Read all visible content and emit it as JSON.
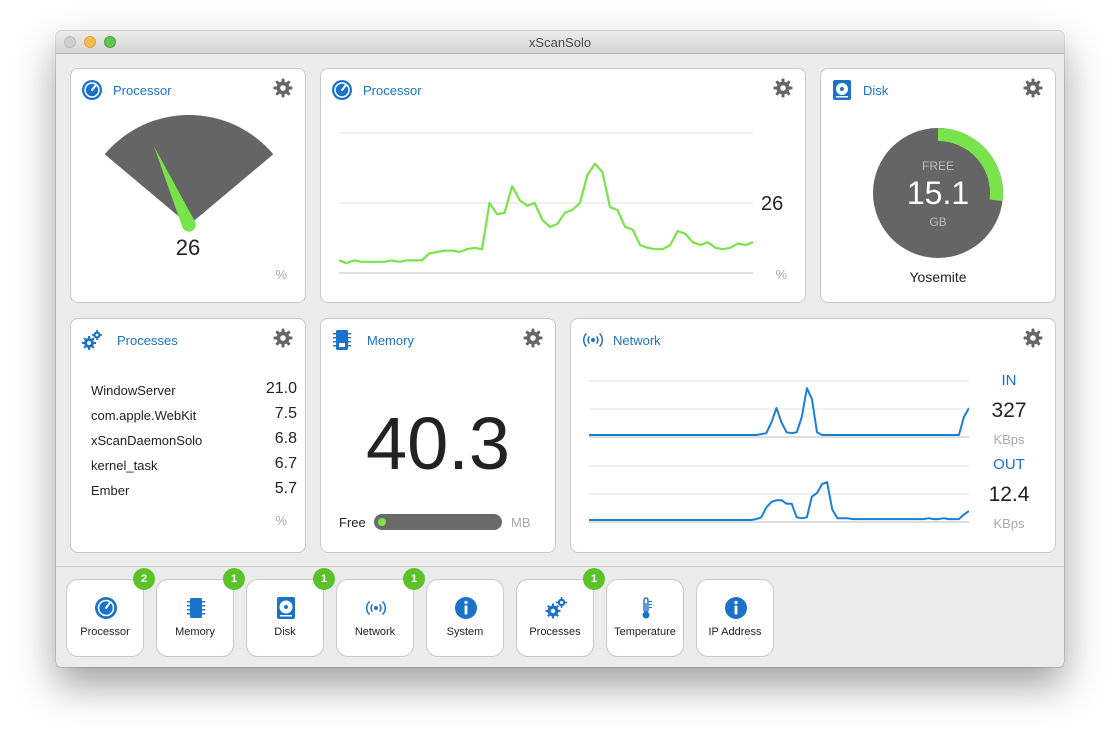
{
  "window": {
    "title": "xScanSolo"
  },
  "colors": {
    "accent": "#1a72c9",
    "green": "#78e34a",
    "gray": "#666666",
    "badge": "#5cc22a",
    "network_line": "#1a7fd6"
  },
  "processor_gauge": {
    "title": "Processor",
    "value": "26",
    "level": 0.26,
    "unit": "%"
  },
  "processor_chart": {
    "title": "Processor",
    "current": "26",
    "unit": "%",
    "chart_data": {
      "type": "line",
      "title": "",
      "ylim": [
        0,
        100
      ],
      "grid": true,
      "values": [
        9,
        7,
        9,
        8,
        8,
        8,
        8,
        9,
        8,
        9,
        9,
        9,
        14,
        15,
        16,
        16,
        15,
        17,
        18,
        17,
        50,
        42,
        43,
        62,
        52,
        48,
        50,
        38,
        33,
        35,
        43,
        45,
        50,
        70,
        78,
        72,
        47,
        45,
        33,
        31,
        20,
        18,
        17,
        17,
        20,
        30,
        28,
        22,
        20,
        22,
        18,
        17,
        18,
        21,
        20,
        22
      ]
    }
  },
  "disk": {
    "title": "Disk",
    "free_label": "FREE",
    "value": "15.1",
    "unit": "GB",
    "free_fraction": 0.27,
    "volume": "Yosemite"
  },
  "processes": {
    "title": "Processes",
    "unit": "%",
    "rows": [
      {
        "name": "WindowServer",
        "value": "21.0"
      },
      {
        "name": "com.apple.WebKit",
        "value": "7.5"
      },
      {
        "name": "xScanDaemonSolo",
        "value": "6.8"
      },
      {
        "name": "kernel_task",
        "value": "6.7"
      },
      {
        "name": "Ember",
        "value": "5.7"
      }
    ]
  },
  "memory": {
    "title": "Memory",
    "value": "40.3",
    "free_label": "Free",
    "unit": "MB",
    "free_fraction": 0.03
  },
  "network": {
    "title": "Network",
    "in_label": "IN",
    "in_value": "327",
    "in_unit": "KBps",
    "out_label": "OUT",
    "out_value": "12.4",
    "out_unit": "KBps",
    "chart_data": [
      {
        "type": "line",
        "title": "",
        "values": [
          0,
          0,
          0,
          0,
          0,
          0,
          0,
          0,
          0,
          0,
          0,
          0,
          0,
          0,
          0,
          0,
          0,
          0,
          0,
          0,
          0,
          0,
          0,
          0,
          0,
          0,
          0,
          0,
          0,
          0,
          0,
          0,
          0,
          0,
          1,
          2,
          14,
          30,
          14,
          3,
          2,
          3,
          20,
          52,
          40,
          3,
          0,
          0,
          0,
          0,
          0,
          0,
          0,
          0,
          0,
          0,
          0,
          0,
          0,
          0,
          0,
          0,
          0,
          0,
          0,
          0,
          0,
          0,
          0,
          0,
          0,
          0,
          0,
          0,
          20,
          30
        ]
      },
      {
        "type": "line",
        "title": "",
        "values": [
          0,
          0,
          0,
          0,
          0,
          0,
          0,
          0,
          0,
          0,
          0,
          0,
          0,
          0,
          0,
          0,
          0,
          0,
          0,
          0,
          0,
          0,
          0,
          0,
          0,
          0,
          0,
          0,
          0,
          0,
          0,
          0,
          0,
          1,
          3,
          14,
          20,
          22,
          22,
          18,
          18,
          3,
          2,
          3,
          26,
          30,
          40,
          42,
          12,
          2,
          2,
          2,
          1,
          1,
          1,
          1,
          1,
          1,
          1,
          1,
          1,
          1,
          1,
          1,
          1,
          1,
          1,
          2,
          1,
          1,
          2,
          1,
          1,
          1,
          6,
          10
        ]
      }
    ]
  },
  "dock": {
    "items": [
      {
        "label": "Processor",
        "badge": "2",
        "icon": "gauge-icon"
      },
      {
        "label": "Memory",
        "badge": "1",
        "icon": "memory-chip-icon"
      },
      {
        "label": "Disk",
        "badge": "1",
        "icon": "hard-disk-icon"
      },
      {
        "label": "Network",
        "badge": "1",
        "icon": "wifi-broadcast-icon"
      },
      {
        "label": "System",
        "badge": "",
        "icon": "info-icon"
      },
      {
        "label": "Processes",
        "badge": "1",
        "icon": "gears-icon"
      },
      {
        "label": "Temperature",
        "badge": "",
        "icon": "thermometer-icon"
      },
      {
        "label": "IP Address",
        "badge": "",
        "icon": "info-icon"
      }
    ]
  }
}
